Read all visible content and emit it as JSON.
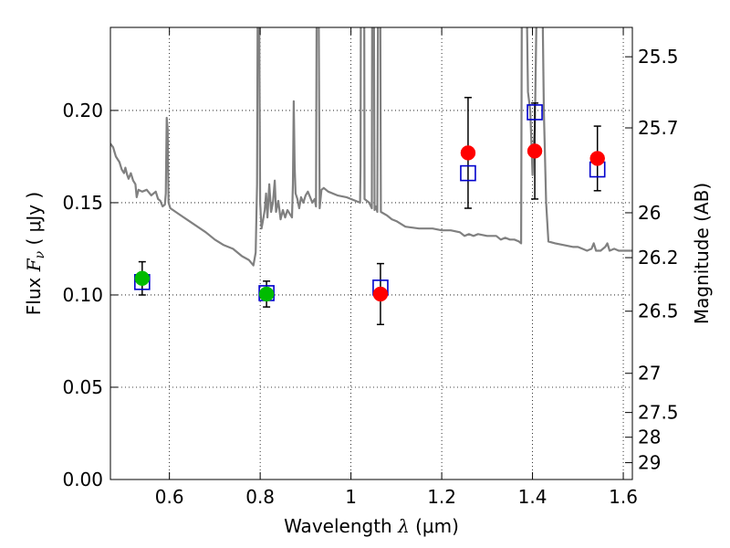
{
  "chart_data": {
    "type": "scatter",
    "xlabel": "Wavelength",
    "xlabel_symbol": "λ",
    "xlabel_unit": "(μm)",
    "ylabel": "Flux",
    "ylabel_symbol": "F",
    "ylabel_subscript": "ν",
    "ylabel_unit": "( μJy )",
    "y2label": "Magnitude (AB)",
    "xlim": [
      0.47,
      1.62
    ],
    "ylim": [
      0.0,
      0.245
    ],
    "grid": true,
    "x_ticks": [
      {
        "value": 0.6,
        "label": "0.6"
      },
      {
        "value": 0.8,
        "label": "0.8"
      },
      {
        "value": 1.0,
        "label": "1"
      },
      {
        "value": 1.2,
        "label": "1.2"
      },
      {
        "value": 1.4,
        "label": "1.4"
      },
      {
        "value": 1.6,
        "label": "1.6"
      }
    ],
    "y_ticks": [
      {
        "value": 0.0,
        "label": "0.00"
      },
      {
        "value": 0.05,
        "label": "0.05"
      },
      {
        "value": 0.1,
        "label": "0.10"
      },
      {
        "value": 0.15,
        "label": "0.15"
      },
      {
        "value": 0.2,
        "label": "0.20"
      }
    ],
    "y2_ticks": [
      {
        "mag": 25.5,
        "label": "25.5"
      },
      {
        "mag": 25.7,
        "label": "25.7"
      },
      {
        "mag": 26.0,
        "label": "26"
      },
      {
        "mag": 26.2,
        "label": "26.2"
      },
      {
        "mag": 26.5,
        "label": "26.5"
      },
      {
        "mag": 27.0,
        "label": "27"
      },
      {
        "mag": 27.5,
        "label": "27.5"
      },
      {
        "mag": 28.0,
        "label": "28"
      },
      {
        "mag": 29.0,
        "label": "29"
      }
    ],
    "observed_points": [
      {
        "x": 0.54,
        "y": 0.109,
        "err": 0.009,
        "color": "#00bb00"
      },
      {
        "x": 0.814,
        "y": 0.1005,
        "err": 0.007,
        "color": "#00bb00"
      },
      {
        "x": 1.065,
        "y": 0.1005,
        "err": 0.0165,
        "color": "#ff0000"
      },
      {
        "x": 1.258,
        "y": 0.177,
        "err": 0.03,
        "color": "#ff0000"
      },
      {
        "x": 1.405,
        "y": 0.178,
        "err": 0.026,
        "color": "#ff0000"
      },
      {
        "x": 1.543,
        "y": 0.174,
        "err": 0.0175,
        "color": "#ff0000"
      }
    ],
    "model_points": [
      {
        "x": 0.54,
        "y": 0.107
      },
      {
        "x": 0.814,
        "y": 0.101
      },
      {
        "x": 1.065,
        "y": 0.104
      },
      {
        "x": 1.258,
        "y": 0.166
      },
      {
        "x": 1.405,
        "y": 0.199
      },
      {
        "x": 1.543,
        "y": 0.168
      }
    ],
    "sed_spectrum": {
      "color": "#808080",
      "points": [
        [
          0.47,
          0.182
        ],
        [
          0.476,
          0.18
        ],
        [
          0.482,
          0.175
        ],
        [
          0.49,
          0.172
        ],
        [
          0.495,
          0.168
        ],
        [
          0.5,
          0.166
        ],
        [
          0.503,
          0.169
        ],
        [
          0.507,
          0.165
        ],
        [
          0.51,
          0.163
        ],
        [
          0.515,
          0.166
        ],
        [
          0.52,
          0.162
        ],
        [
          0.525,
          0.16
        ],
        [
          0.528,
          0.153
        ],
        [
          0.532,
          0.157
        ],
        [
          0.54,
          0.156
        ],
        [
          0.55,
          0.157
        ],
        [
          0.56,
          0.154
        ],
        [
          0.57,
          0.156
        ],
        [
          0.575,
          0.152
        ],
        [
          0.58,
          0.151
        ],
        [
          0.585,
          0.148
        ],
        [
          0.59,
          0.149
        ],
        [
          0.592,
          0.155
        ],
        [
          0.594,
          0.196
        ],
        [
          0.596,
          0.19
        ],
        [
          0.598,
          0.15
        ],
        [
          0.602,
          0.147
        ],
        [
          0.62,
          0.144
        ],
        [
          0.65,
          0.139
        ],
        [
          0.68,
          0.134
        ],
        [
          0.7,
          0.13
        ],
        [
          0.72,
          0.127
        ],
        [
          0.74,
          0.125
        ],
        [
          0.76,
          0.121
        ],
        [
          0.775,
          0.119
        ],
        [
          0.785,
          0.116
        ],
        [
          0.79,
          0.123
        ],
        [
          0.793,
          0.16
        ],
        [
          0.795,
          0.3
        ],
        [
          0.797,
          0.3
        ],
        [
          0.8,
          0.15
        ],
        [
          0.803,
          0.136
        ],
        [
          0.806,
          0.14
        ],
        [
          0.81,
          0.146
        ],
        [
          0.813,
          0.155
        ],
        [
          0.816,
          0.142
        ],
        [
          0.82,
          0.16
        ],
        [
          0.824,
          0.145
        ],
        [
          0.828,
          0.15
        ],
        [
          0.832,
          0.162
        ],
        [
          0.835,
          0.145
        ],
        [
          0.84,
          0.151
        ],
        [
          0.845,
          0.141
        ],
        [
          0.85,
          0.146
        ],
        [
          0.855,
          0.142
        ],
        [
          0.86,
          0.146
        ],
        [
          0.865,
          0.144
        ],
        [
          0.87,
          0.142
        ],
        [
          0.872,
          0.16
        ],
        [
          0.874,
          0.205
        ],
        [
          0.876,
          0.17
        ],
        [
          0.878,
          0.155
        ],
        [
          0.882,
          0.152
        ],
        [
          0.886,
          0.147
        ],
        [
          0.89,
          0.153
        ],
        [
          0.895,
          0.15
        ],
        [
          0.9,
          0.154
        ],
        [
          0.905,
          0.156
        ],
        [
          0.91,
          0.153
        ],
        [
          0.915,
          0.15
        ],
        [
          0.92,
          0.152
        ],
        [
          0.923,
          0.148
        ],
        [
          0.925,
          0.3
        ],
        [
          0.928,
          0.3
        ],
        [
          0.931,
          0.147
        ],
        [
          0.935,
          0.157
        ],
        [
          0.94,
          0.158
        ],
        [
          0.95,
          0.156
        ],
        [
          0.97,
          0.154
        ],
        [
          0.99,
          0.153
        ],
        [
          1.0,
          0.152
        ],
        [
          1.01,
          0.151
        ],
        [
          1.02,
          0.15
        ],
        [
          1.021,
          0.17
        ],
        [
          1.022,
          0.3
        ],
        [
          1.029,
          0.3
        ],
        [
          1.03,
          0.152
        ],
        [
          1.04,
          0.15
        ],
        [
          1.046,
          0.147
        ],
        [
          1.047,
          0.3
        ],
        [
          1.05,
          0.3
        ],
        [
          1.052,
          0.146
        ],
        [
          1.055,
          0.148
        ],
        [
          1.058,
          0.145
        ],
        [
          1.06,
          0.3
        ],
        [
          1.064,
          0.3
        ],
        [
          1.066,
          0.145
        ],
        [
          1.08,
          0.143
        ],
        [
          1.09,
          0.141
        ],
        [
          1.1,
          0.14
        ],
        [
          1.12,
          0.137
        ],
        [
          1.15,
          0.136
        ],
        [
          1.18,
          0.136
        ],
        [
          1.2,
          0.135
        ],
        [
          1.22,
          0.135
        ],
        [
          1.24,
          0.134
        ],
        [
          1.25,
          0.132
        ],
        [
          1.26,
          0.133
        ],
        [
          1.27,
          0.132
        ],
        [
          1.28,
          0.133
        ],
        [
          1.3,
          0.132
        ],
        [
          1.32,
          0.132
        ],
        [
          1.33,
          0.13
        ],
        [
          1.34,
          0.131
        ],
        [
          1.35,
          0.13
        ],
        [
          1.36,
          0.13
        ],
        [
          1.37,
          0.129
        ],
        [
          1.375,
          0.128
        ],
        [
          1.377,
          0.3
        ],
        [
          1.385,
          0.3
        ],
        [
          1.39,
          0.21
        ],
        [
          1.395,
          0.2
        ],
        [
          1.4,
          0.165
        ],
        [
          1.402,
          0.18
        ],
        [
          1.405,
          0.19
        ],
        [
          1.41,
          0.27
        ],
        [
          1.415,
          0.3
        ],
        [
          1.42,
          0.3
        ],
        [
          1.425,
          0.2
        ],
        [
          1.43,
          0.15
        ],
        [
          1.435,
          0.129
        ],
        [
          1.45,
          0.128
        ],
        [
          1.47,
          0.127
        ],
        [
          1.49,
          0.126
        ],
        [
          1.5,
          0.126
        ],
        [
          1.51,
          0.125
        ],
        [
          1.52,
          0.124
        ],
        [
          1.53,
          0.125
        ],
        [
          1.535,
          0.128
        ],
        [
          1.54,
          0.124
        ],
        [
          1.55,
          0.124
        ],
        [
          1.56,
          0.126
        ],
        [
          1.565,
          0.128
        ],
        [
          1.57,
          0.124
        ],
        [
          1.58,
          0.125
        ],
        [
          1.59,
          0.124
        ],
        [
          1.6,
          0.124
        ],
        [
          1.62,
          0.124
        ]
      ]
    }
  }
}
